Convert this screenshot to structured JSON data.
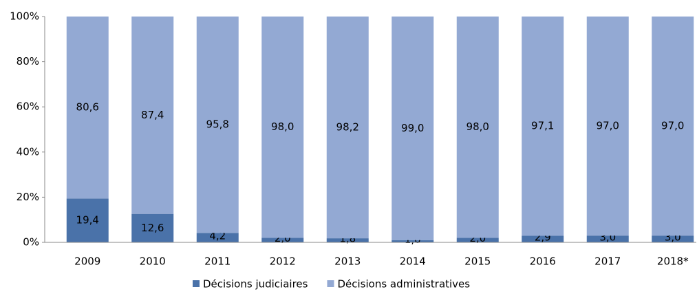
{
  "chart_data": {
    "type": "stacked_bar",
    "categories": [
      "2009",
      "2010",
      "2011",
      "2012",
      "2013",
      "2014",
      "2015",
      "2016",
      "2017",
      "2018*"
    ],
    "series": [
      {
        "name": "Décisions judiciaires",
        "color": "#4a72a9",
        "values": [
          19.4,
          12.6,
          4.2,
          2.0,
          1.8,
          1.0,
          2.0,
          2.9,
          3.0,
          3.0
        ],
        "value_labels": [
          "19,4",
          "12,6",
          "4,2",
          "2,0",
          "1,8",
          "1,0",
          "2,0",
          "2,9",
          "3,0",
          "3,0"
        ]
      },
      {
        "name": "Décisions administratives",
        "color": "#93a9d3",
        "values": [
          80.6,
          87.4,
          95.8,
          98.0,
          98.2,
          99.0,
          98.0,
          97.1,
          97.0,
          97.0
        ],
        "value_labels": [
          "80,6",
          "87,4",
          "95,8",
          "98,0",
          "98,2",
          "99,0",
          "98,0",
          "97,1",
          "97,0",
          "97,0"
        ]
      }
    ],
    "ylim": [
      0,
      100
    ],
    "yticks": [
      {
        "value": 0,
        "label": "0%"
      },
      {
        "value": 20,
        "label": "20%"
      },
      {
        "value": 40,
        "label": "40%"
      },
      {
        "value": 60,
        "label": "60%"
      },
      {
        "value": 80,
        "label": "80%"
      },
      {
        "value": 100,
        "label": "100%"
      }
    ],
    "legend": "bottom",
    "grid": false
  }
}
